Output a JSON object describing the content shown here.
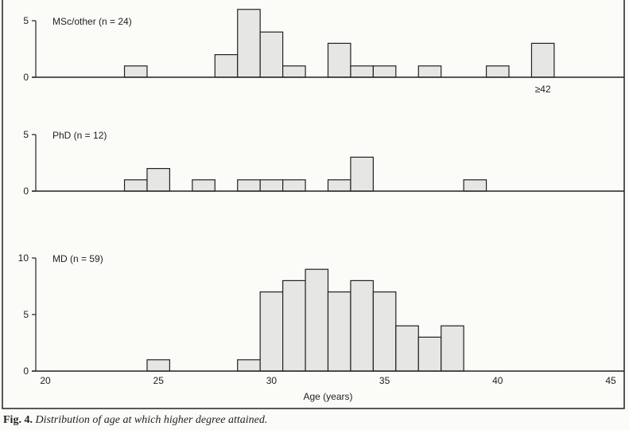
{
  "chart_data": [
    {
      "type": "bar",
      "title": "MSc/other (n = 24)",
      "x": [
        24,
        28,
        29,
        30,
        31,
        33,
        34,
        35,
        37,
        40,
        42
      ],
      "values": [
        1,
        2,
        6,
        4,
        1,
        3,
        1,
        1,
        1,
        1,
        3
      ],
      "annotations": [
        "≥42"
      ],
      "yticks": [
        0,
        5
      ],
      "ylim": [
        0,
        6
      ],
      "xlim": [
        20,
        45
      ]
    },
    {
      "type": "bar",
      "title": "PhD (n = 12)",
      "x": [
        24,
        25,
        27,
        29,
        30,
        31,
        33,
        34,
        39
      ],
      "values": [
        1,
        2,
        1,
        1,
        1,
        1,
        1,
        3,
        1
      ],
      "yticks": [
        0,
        5
      ],
      "ylim": [
        0,
        5
      ],
      "xlim": [
        20,
        45
      ]
    },
    {
      "type": "bar",
      "title": "MD (n = 59)",
      "x": [
        25,
        29,
        30,
        31,
        32,
        33,
        34,
        35,
        36,
        37,
        38
      ],
      "values": [
        1,
        1,
        7,
        8,
        9,
        7,
        8,
        7,
        4,
        3,
        4
      ],
      "yticks": [
        0,
        5,
        10
      ],
      "ylim": [
        0,
        10
      ],
      "xlim": [
        20,
        45
      ],
      "xticks": [
        20,
        25,
        30,
        35,
        40,
        45
      ],
      "xlabel": "Age (years)"
    }
  ],
  "colors": {
    "bar_fill": "#e6e6e4",
    "stroke": "#222222"
  },
  "caption": {
    "label": "Fig. 4.",
    "text": "Distribution of age at which higher degree attained."
  }
}
